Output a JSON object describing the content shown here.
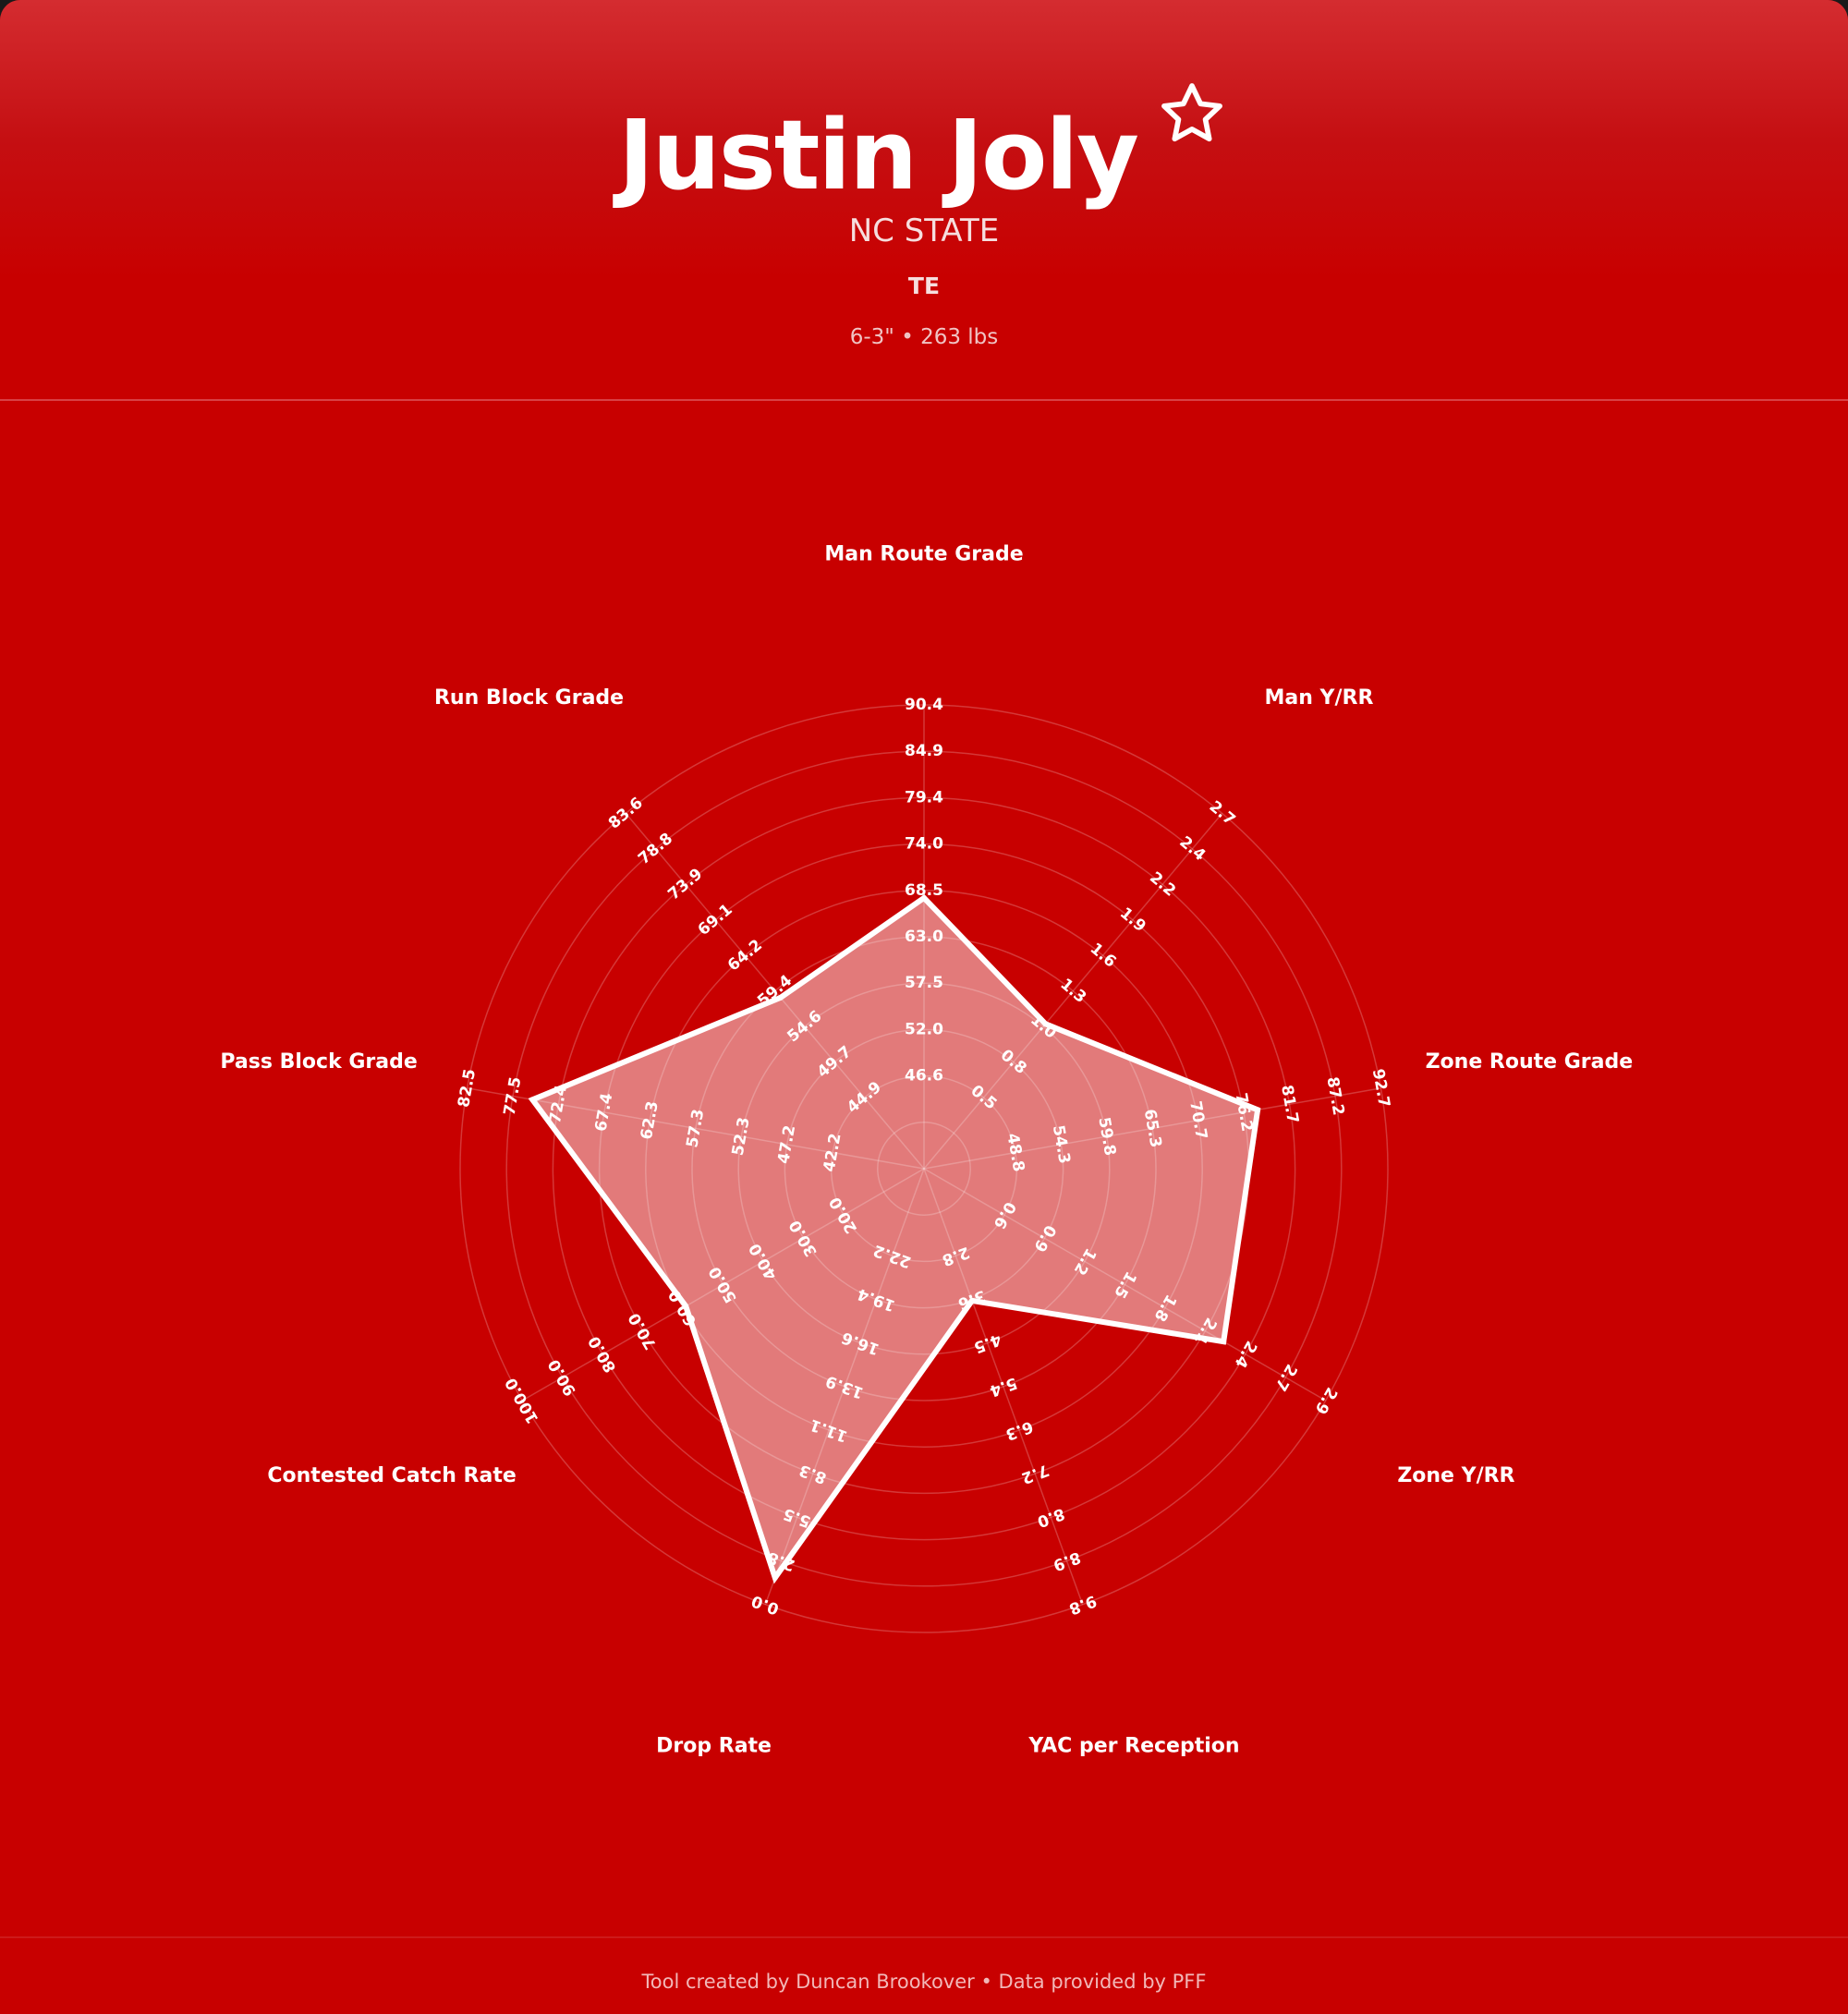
{
  "header": {
    "name": "Justin Joly",
    "school": "NC STATE",
    "position": "TE",
    "measurables": "6-3\" • 263 lbs",
    "favorite_icon": "star-outline-icon"
  },
  "colors": {
    "background": "#c80000",
    "header_top": "#d42c30",
    "polygon_fill": "rgba(255,255,255,0.48)",
    "polygon_stroke": "#ffffff",
    "grid": "rgba(255,255,255,0.22)"
  },
  "chart_data": {
    "type": "radar",
    "grid": true,
    "rings": 10,
    "axes": [
      {
        "label": "Man Route Grade",
        "range": [
          35.6,
          90.4
        ],
        "ticks": [
          "46.6",
          "52.0",
          "57.5",
          "63.0",
          "68.5",
          "74.0",
          "79.4",
          "84.9",
          "90.4"
        ]
      },
      {
        "label": "Man Y/RR",
        "range": [
          0.0,
          2.7
        ],
        "ticks": [
          "0.5",
          "0.8",
          "1.0",
          "1.3",
          "1.6",
          "1.9",
          "2.2",
          "2.4",
          "2.7"
        ]
      },
      {
        "label": "Zone Route Grade",
        "range": [
          37.8,
          92.7
        ],
        "ticks": [
          "48.8",
          "54.3",
          "59.8",
          "65.3",
          "70.7",
          "76.2",
          "81.7",
          "87.2",
          "92.7"
        ]
      },
      {
        "label": "Zone Y/RR",
        "range": [
          0.0,
          2.95
        ],
        "ticks": [
          "0.6",
          "0.9",
          "1.2",
          "1.5",
          "1.8",
          "2.1",
          "2.4",
          "2.7",
          "2.9"
        ]
      },
      {
        "label": "YAC per Reception",
        "range": [
          1.05,
          9.8
        ],
        "ticks": [
          "2.8",
          "3.6",
          "4.5",
          "5.4",
          "6.3",
          "7.2",
          "8.0",
          "8.9",
          "9.8"
        ]
      },
      {
        "label": "Drop Rate",
        "range": [
          27.7,
          0.0
        ],
        "reversed": true,
        "ticks": [
          "22.2",
          "19.4",
          "16.6",
          "13.9",
          "11.1",
          "8.3",
          "5.5",
          "2.8",
          "0.0"
        ]
      },
      {
        "label": "Contested Catch Rate",
        "range": [
          0.0,
          100.0
        ],
        "ticks": [
          "20.0",
          "30.0",
          "40.0",
          "50.0",
          "60.0",
          "70.0",
          "80.0",
          "90.0",
          "100.0"
        ]
      },
      {
        "label": "Pass Block Grade",
        "range": [
          32.1,
          82.5
        ],
        "ticks": [
          "42.2",
          "47.2",
          "52.3",
          "57.3",
          "62.3",
          "67.4",
          "72.4",
          "77.5",
          "82.5"
        ]
      },
      {
        "label": "Run Block Grade",
        "range": [
          35.2,
          83.6
        ],
        "ticks": [
          "44.9",
          "49.7",
          "54.6",
          "59.4",
          "64.2",
          "69.1",
          "73.9",
          "78.8",
          "83.6"
        ]
      }
    ],
    "series": [
      {
        "values": [
          67.6,
          1.1,
          77.9,
          2.2,
          3.7,
          1.7,
          59.3,
          75.3,
          58.5
        ]
      }
    ]
  },
  "footer": {
    "credit": "Tool created by Duncan Brookover • Data provided by PFF"
  }
}
